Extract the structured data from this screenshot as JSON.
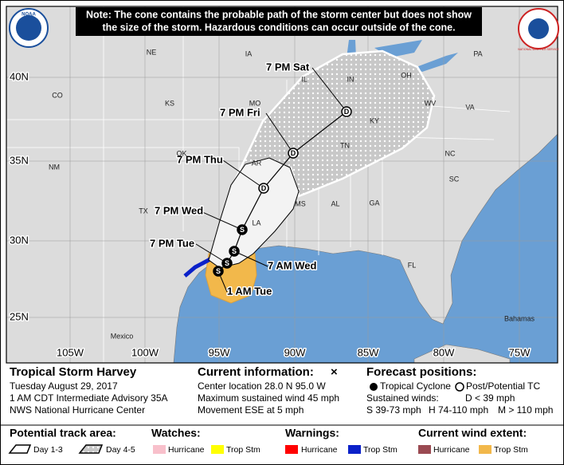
{
  "note": "Note: The cone contains the probable path of the storm center but does not show the size of the storm. Hazardous conditions can occur outside of the cone.",
  "logos": {
    "noaa": "NOAA",
    "nws": "NATIONAL WEATHER SERVICE"
  },
  "map": {
    "latitude_labels": [
      "40N",
      "35N",
      "30N",
      "25N"
    ],
    "longitude_labels": [
      "105W",
      "100W",
      "95W",
      "90W",
      "85W",
      "80W",
      "75W"
    ],
    "region_labels": [
      "CO",
      "KS",
      "MO",
      "IL",
      "IN",
      "OH",
      "PA",
      "WV",
      "VA",
      "KY",
      "TN",
      "NC",
      "SC",
      "AR",
      "OK",
      "NM",
      "TX",
      "LA",
      "MS",
      "AL",
      "GA",
      "FL",
      "NE",
      "IA",
      "Mexico",
      "Bahamas"
    ]
  },
  "forecast_points": [
    {
      "label": "1 AM Tue",
      "symbol": "S"
    },
    {
      "label": "7 PM Tue",
      "symbol": "S"
    },
    {
      "label": "7 AM Wed",
      "symbol": "S"
    },
    {
      "label": "7 PM Wed",
      "symbol": "S"
    },
    {
      "label": "7 PM Thu",
      "symbol": "D"
    },
    {
      "label": "7 PM Fri",
      "symbol": "D"
    },
    {
      "label": "7 PM Sat",
      "symbol": "D"
    }
  ],
  "info": {
    "storm_name": "Tropical Storm Harvey",
    "date": "Tuesday August 29, 2017",
    "advisory": "1 AM CDT Intermediate Advisory 35A",
    "center": "NWS National Hurricane Center"
  },
  "current": {
    "title": "Current information:",
    "symbol": "×",
    "lines": [
      "Center location 28.0 N 95.0 W",
      "Maximum sustained wind 45 mph",
      "Movement ESE at 5 mph"
    ]
  },
  "forecast": {
    "title": "Forecast positions:",
    "items": [
      "Tropical Cyclone",
      "Post/Potential TC"
    ],
    "sustained": "Sustained winds:",
    "d": "D < 39 mph",
    "s": "S 39-73 mph",
    "h": "H 74-110 mph",
    "m": "M > 110 mph"
  },
  "legend": {
    "track_title": "Potential track area:",
    "day13": "Day 1-3",
    "day45": "Day 4-5",
    "watches": "Watches:",
    "watch_items": [
      "Hurricane",
      "Trop Stm"
    ],
    "warnings": "Warnings:",
    "warning_items": [
      "Hurricane",
      "Trop Stm"
    ],
    "wind": "Current wind extent:",
    "wind_items": [
      "Hurricane",
      "Trop Stm"
    ]
  }
}
